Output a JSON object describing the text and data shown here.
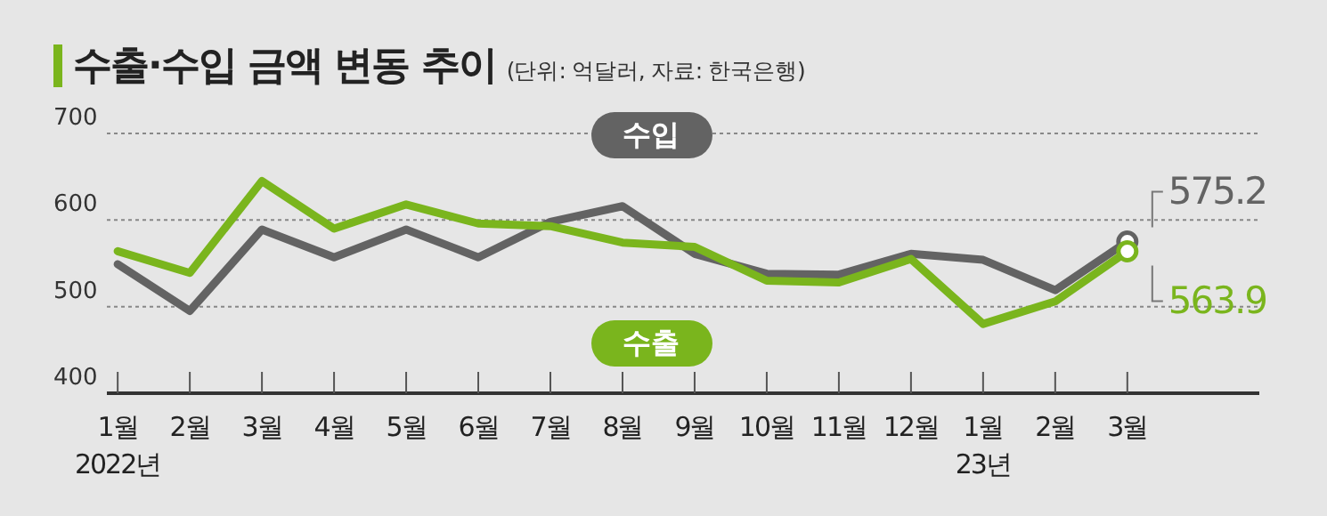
{
  "chart_data": {
    "type": "line",
    "title": "수출·수입 금액 변동 추이",
    "subtitle": "(단위: 억달러, 자료: 한국은행)",
    "categories": [
      "1월\n2022년",
      "2월",
      "3월",
      "4월",
      "5월",
      "6월",
      "7월",
      "8월",
      "9월",
      "10월",
      "11월",
      "12월",
      "1월\n23년",
      "2월",
      "3월"
    ],
    "series": [
      {
        "name": "수입",
        "color": "#636363",
        "values": [
          549,
          495,
          589,
          557,
          589,
          557,
          598,
          616,
          561,
          538,
          537,
          561,
          554,
          519,
          575.2
        ],
        "value_labels": [
          null,
          null,
          null,
          null,
          null,
          null,
          null,
          null,
          null,
          null,
          null,
          null,
          null,
          null,
          "575.2"
        ]
      },
      {
        "name": "수출",
        "color": "#7ab51d",
        "values": [
          564,
          539,
          645,
          590,
          618,
          596,
          593,
          574,
          569,
          530,
          528,
          555,
          480,
          506,
          563.9
        ],
        "value_labels": [
          null,
          null,
          null,
          null,
          null,
          null,
          null,
          null,
          null,
          null,
          null,
          null,
          null,
          null,
          "563.9"
        ]
      }
    ],
    "ylim": [
      400,
      700
    ],
    "yticks": [
      400,
      500,
      600,
      700
    ],
    "grid": "y",
    "legend": false,
    "line_style": "solid"
  }
}
